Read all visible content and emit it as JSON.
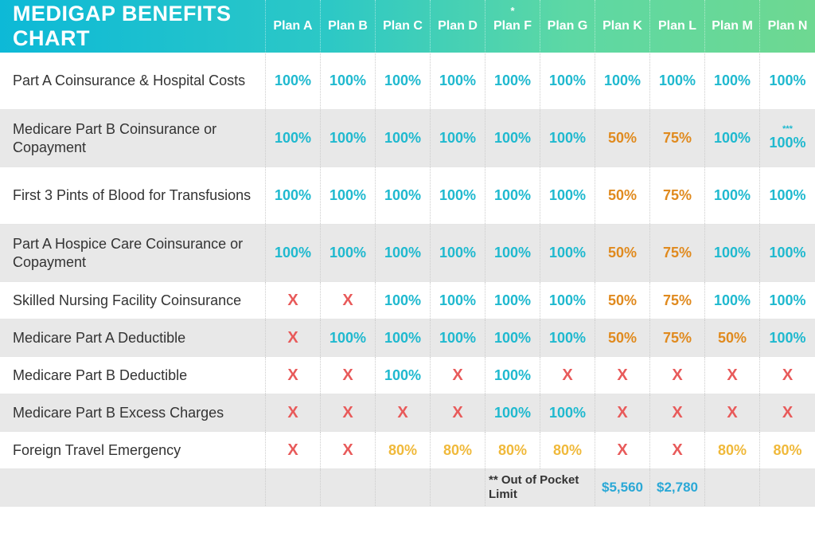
{
  "title": "MEDIGAP BENEFITS CHART",
  "colors": {
    "teal": "#1fb9cf",
    "orange": "#e08a1e",
    "red": "#e85a5a",
    "yellow": "#f0b93a",
    "blue": "#2aa8d6",
    "header_gradient_start": "#0db9d7",
    "header_gradient_end": "#6ed891",
    "alt_row": "#e8e8e8"
  },
  "plans": [
    {
      "label": "Plan A",
      "asterisk": ""
    },
    {
      "label": "Plan B",
      "asterisk": ""
    },
    {
      "label": "Plan C",
      "asterisk": ""
    },
    {
      "label": "Plan D",
      "asterisk": ""
    },
    {
      "label": "Plan F",
      "asterisk": "*"
    },
    {
      "label": "Plan G",
      "asterisk": ""
    },
    {
      "label": "Plan K",
      "asterisk": ""
    },
    {
      "label": "Plan L",
      "asterisk": ""
    },
    {
      "label": "Plan M",
      "asterisk": ""
    },
    {
      "label": "Plan N",
      "asterisk": ""
    }
  ],
  "rows": [
    {
      "label": "Part A Coinsurance & Hospital Costs",
      "tall": true,
      "alt": false,
      "cells": [
        {
          "v": "100%",
          "c": "teal"
        },
        {
          "v": "100%",
          "c": "teal"
        },
        {
          "v": "100%",
          "c": "teal"
        },
        {
          "v": "100%",
          "c": "teal"
        },
        {
          "v": "100%",
          "c": "teal"
        },
        {
          "v": "100%",
          "c": "teal"
        },
        {
          "v": "100%",
          "c": "teal"
        },
        {
          "v": "100%",
          "c": "teal"
        },
        {
          "v": "100%",
          "c": "teal"
        },
        {
          "v": "100%",
          "c": "teal"
        }
      ]
    },
    {
      "label": "Medicare Part B Coinsurance or Copayment",
      "tall": true,
      "alt": true,
      "cells": [
        {
          "v": "100%",
          "c": "teal"
        },
        {
          "v": "100%",
          "c": "teal"
        },
        {
          "v": "100%",
          "c": "teal"
        },
        {
          "v": "100%",
          "c": "teal"
        },
        {
          "v": "100%",
          "c": "teal"
        },
        {
          "v": "100%",
          "c": "teal"
        },
        {
          "v": "50%",
          "c": "orange"
        },
        {
          "v": "75%",
          "c": "orange"
        },
        {
          "v": "100%",
          "c": "teal"
        },
        {
          "v": "100%",
          "c": "teal",
          "note": "***"
        }
      ]
    },
    {
      "label": "First 3 Pints of Blood for Transfusions",
      "tall": true,
      "alt": false,
      "cells": [
        {
          "v": "100%",
          "c": "teal"
        },
        {
          "v": "100%",
          "c": "teal"
        },
        {
          "v": "100%",
          "c": "teal"
        },
        {
          "v": "100%",
          "c": "teal"
        },
        {
          "v": "100%",
          "c": "teal"
        },
        {
          "v": "100%",
          "c": "teal"
        },
        {
          "v": "50%",
          "c": "orange"
        },
        {
          "v": "75%",
          "c": "orange"
        },
        {
          "v": "100%",
          "c": "teal"
        },
        {
          "v": "100%",
          "c": "teal"
        }
      ]
    },
    {
      "label": "Part A Hospice Care Coinsurance or Copayment",
      "tall": true,
      "alt": true,
      "cells": [
        {
          "v": "100%",
          "c": "teal"
        },
        {
          "v": "100%",
          "c": "teal"
        },
        {
          "v": "100%",
          "c": "teal"
        },
        {
          "v": "100%",
          "c": "teal"
        },
        {
          "v": "100%",
          "c": "teal"
        },
        {
          "v": "100%",
          "c": "teal"
        },
        {
          "v": "50%",
          "c": "orange"
        },
        {
          "v": "75%",
          "c": "orange"
        },
        {
          "v": "100%",
          "c": "teal"
        },
        {
          "v": "100%",
          "c": "teal"
        }
      ]
    },
    {
      "label": "Skilled Nursing Facility Coinsurance",
      "tall": false,
      "alt": false,
      "cells": [
        {
          "v": "X",
          "c": "red"
        },
        {
          "v": "X",
          "c": "red"
        },
        {
          "v": "100%",
          "c": "teal"
        },
        {
          "v": "100%",
          "c": "teal"
        },
        {
          "v": "100%",
          "c": "teal"
        },
        {
          "v": "100%",
          "c": "teal"
        },
        {
          "v": "50%",
          "c": "orange"
        },
        {
          "v": "75%",
          "c": "orange"
        },
        {
          "v": "100%",
          "c": "teal"
        },
        {
          "v": "100%",
          "c": "teal"
        }
      ]
    },
    {
      "label": "Medicare Part A Deductible",
      "tall": false,
      "alt": true,
      "cells": [
        {
          "v": "X",
          "c": "red"
        },
        {
          "v": "100%",
          "c": "teal"
        },
        {
          "v": "100%",
          "c": "teal"
        },
        {
          "v": "100%",
          "c": "teal"
        },
        {
          "v": "100%",
          "c": "teal"
        },
        {
          "v": "100%",
          "c": "teal"
        },
        {
          "v": "50%",
          "c": "orange"
        },
        {
          "v": "75%",
          "c": "orange"
        },
        {
          "v": "50%",
          "c": "orange"
        },
        {
          "v": "100%",
          "c": "teal"
        }
      ]
    },
    {
      "label": "Medicare Part B Deductible",
      "tall": false,
      "alt": false,
      "cells": [
        {
          "v": "X",
          "c": "red"
        },
        {
          "v": "X",
          "c": "red"
        },
        {
          "v": "100%",
          "c": "teal"
        },
        {
          "v": "X",
          "c": "red"
        },
        {
          "v": "100%",
          "c": "teal"
        },
        {
          "v": "X",
          "c": "red"
        },
        {
          "v": "X",
          "c": "red"
        },
        {
          "v": "X",
          "c": "red"
        },
        {
          "v": "X",
          "c": "red"
        },
        {
          "v": "X",
          "c": "red"
        }
      ]
    },
    {
      "label": "Medicare Part B Excess Charges",
      "tall": false,
      "alt": true,
      "cells": [
        {
          "v": "X",
          "c": "red"
        },
        {
          "v": "X",
          "c": "red"
        },
        {
          "v": "X",
          "c": "red"
        },
        {
          "v": "X",
          "c": "red"
        },
        {
          "v": "100%",
          "c": "teal"
        },
        {
          "v": "100%",
          "c": "teal"
        },
        {
          "v": "X",
          "c": "red"
        },
        {
          "v": "X",
          "c": "red"
        },
        {
          "v": "X",
          "c": "red"
        },
        {
          "v": "X",
          "c": "red"
        }
      ]
    },
    {
      "label": "Foreign Travel Emergency",
      "tall": false,
      "alt": false,
      "cells": [
        {
          "v": "X",
          "c": "red"
        },
        {
          "v": "X",
          "c": "red"
        },
        {
          "v": "80%",
          "c": "yellow"
        },
        {
          "v": "80%",
          "c": "yellow"
        },
        {
          "v": "80%",
          "c": "yellow"
        },
        {
          "v": "80%",
          "c": "yellow"
        },
        {
          "v": "X",
          "c": "red"
        },
        {
          "v": "X",
          "c": "red"
        },
        {
          "v": "80%",
          "c": "yellow"
        },
        {
          "v": "80%",
          "c": "yellow"
        }
      ]
    }
  ],
  "footer": {
    "label": "** Out of Pocket Limit",
    "cells": [
      {
        "v": ""
      },
      {
        "v": ""
      },
      {
        "v": ""
      },
      {
        "v": ""
      },
      {
        "v": ""
      },
      {
        "v": ""
      },
      {
        "v": "$5,560",
        "c": "blue"
      },
      {
        "v": "$2,780",
        "c": "blue"
      },
      {
        "v": ""
      },
      {
        "v": ""
      }
    ]
  }
}
